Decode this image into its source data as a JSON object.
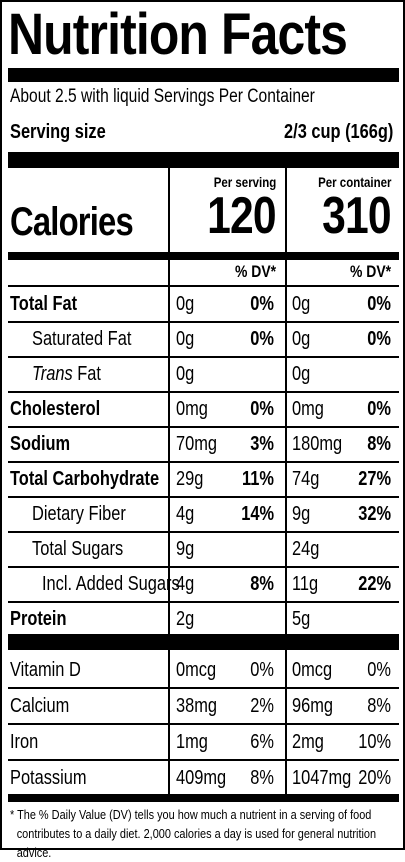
{
  "header": {
    "title": "Nutrition Facts",
    "servings": "About 2.5 with liquid Servings Per Container",
    "serving_size_label": "Serving size",
    "serving_size_value": "2/3 cup (166g)"
  },
  "columns": {
    "per_serving": "Per serving",
    "per_container": "Per container",
    "dv_header": "% DV*"
  },
  "calories": {
    "label": "Calories",
    "per_serving": "120",
    "per_container": "310"
  },
  "nutrients": [
    {
      "label": "Total Fat",
      "serving_amount": "0g",
      "serving_dv": "0%",
      "container_amount": "0g",
      "container_dv": "0%"
    },
    {
      "label": "Saturated Fat",
      "serving_amount": "0g",
      "serving_dv": "0%",
      "container_amount": "0g",
      "container_dv": "0%"
    },
    {
      "label_italic": "Trans",
      "label_rest": " Fat",
      "serving_amount": "0g",
      "serving_dv": "",
      "container_amount": "0g",
      "container_dv": ""
    },
    {
      "label": "Cholesterol",
      "serving_amount": "0mg",
      "serving_dv": "0%",
      "container_amount": "0mg",
      "container_dv": "0%"
    },
    {
      "label": "Sodium",
      "serving_amount": "70mg",
      "serving_dv": "3%",
      "container_amount": "180mg",
      "container_dv": "8%"
    },
    {
      "label": "Total Carbohydrate",
      "serving_amount": "29g",
      "serving_dv": "11%",
      "container_amount": "74g",
      "container_dv": "27%"
    },
    {
      "label": "Dietary Fiber",
      "serving_amount": "4g",
      "serving_dv": "14%",
      "container_amount": "9g",
      "container_dv": "32%"
    },
    {
      "label": "Total Sugars",
      "serving_amount": "9g",
      "serving_dv": "",
      "container_amount": "24g",
      "container_dv": ""
    },
    {
      "label": "Incl. Added Sugars",
      "serving_amount": "4g",
      "serving_dv": "8%",
      "container_amount": "11g",
      "container_dv": "22%"
    },
    {
      "label": "Protein",
      "serving_amount": "2g",
      "serving_dv": "",
      "container_amount": "5g",
      "container_dv": ""
    }
  ],
  "vitamins": [
    {
      "label": "Vitamin D",
      "serving_amount": "0mcg",
      "serving_dv": "0%",
      "container_amount": "0mcg",
      "container_dv": "0%"
    },
    {
      "label": "Calcium",
      "serving_amount": "38mg",
      "serving_dv": "2%",
      "container_amount": "96mg",
      "container_dv": "8%"
    },
    {
      "label": "Iron",
      "serving_amount": "1mg",
      "serving_dv": "6%",
      "container_amount": "2mg",
      "container_dv": "10%"
    },
    {
      "label": "Potassium",
      "serving_amount": "409mg",
      "serving_dv": "8%",
      "container_amount": "1047mg",
      "container_dv": "20%"
    }
  ],
  "footnote": {
    "line1": "* The % Daily Value (DV) tells you how much a nutrient in a serving of food",
    "line2": "contributes to a daily diet. 2,000 calories a day is used for general nutrition advice."
  }
}
